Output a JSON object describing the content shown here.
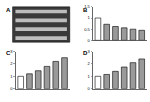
{
  "blot": {
    "panel": "A"
  },
  "chart_data": [
    {
      "type": "bar",
      "title": "B",
      "categories": [
        null,
        null,
        null,
        null,
        null,
        null
      ],
      "values": [
        1.0,
        0.72,
        0.62,
        0.56,
        0.5,
        0.45
      ],
      "colors": [
        "#ffffff",
        "#9a9a9a",
        "#9a9a9a",
        "#9a9a9a",
        "#9a9a9a",
        "#9a9a9a"
      ],
      "ylim": [
        0,
        1.5
      ],
      "yticks": [
        0,
        0.5,
        1,
        1.5
      ],
      "tick_labels": "y"
    },
    {
      "type": "bar",
      "title": "C",
      "categories": [
        null,
        null,
        null,
        null,
        null,
        null
      ],
      "values": [
        1.0,
        1.2,
        1.45,
        1.8,
        2.2,
        2.5
      ],
      "colors": [
        "#ffffff",
        "#9a9a9a",
        "#9a9a9a",
        "#9a9a9a",
        "#9a9a9a",
        "#9a9a9a"
      ],
      "ylim": [
        0,
        3
      ],
      "yticks": [
        0,
        1,
        2,
        3
      ],
      "tick_labels": "y"
    },
    {
      "type": "bar",
      "title": "D",
      "categories": [
        null,
        null,
        null,
        null,
        null,
        null
      ],
      "values": [
        1.0,
        1.15,
        1.4,
        1.75,
        2.1,
        2.4
      ],
      "colors": [
        "#ffffff",
        "#9a9a9a",
        "#9a9a9a",
        "#9a9a9a",
        "#9a9a9a",
        "#9a9a9a"
      ],
      "ylim": [
        0,
        3
      ],
      "yticks": [
        0,
        1,
        2,
        3
      ],
      "tick_labels": "y"
    }
  ]
}
